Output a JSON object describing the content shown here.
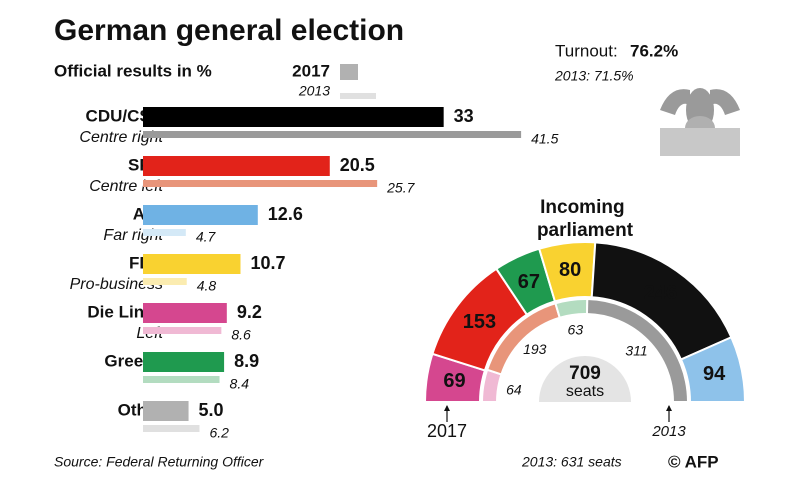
{
  "title": "German general election",
  "turnout_label": "Turnout:",
  "turnout_value": "76.2%",
  "turnout_previous": "2013: 71.5%",
  "source": "Source: Federal Returning Officer",
  "credit": "© AFP",
  "chart_data": [
    {
      "type": "hbar",
      "subtitle": "Official results in %",
      "categories": [
        "CDU/CSU",
        "SPD",
        "AfD",
        "FDP",
        "Die Linke",
        "Greens",
        "Other"
      ],
      "descriptions": [
        "Centre right",
        "Centre left",
        "Far right",
        "Pro-business",
        "Left",
        null,
        null
      ],
      "xlim": [
        0,
        45
      ],
      "series": [
        {
          "name": "2017",
          "color": "#b1b1b1",
          "values": [
            33,
            20.5,
            12.6,
            10.7,
            9.2,
            8.9,
            5.0
          ],
          "value_labels": [
            "33",
            "20.5",
            "12.6",
            "10.7",
            "9.2",
            "8.9",
            "5.0"
          ],
          "colors": [
            "#000000",
            "#e2231a",
            "#6fb2e4",
            "#f9d230",
            "#d5478f",
            "#1f9a4f",
            "#b1b1b1"
          ]
        },
        {
          "name": "2013",
          "color": "#e0e0e0",
          "values": [
            41.5,
            25.7,
            4.7,
            4.8,
            8.6,
            8.4,
            6.2
          ],
          "colors": [
            "#9a9a9a",
            "#e8957a",
            "#d4e9f7",
            "#fbecb0",
            "#f0b9d4",
            "#b3dcc0",
            "#e0e0e0"
          ]
        }
      ]
    },
    {
      "type": "parliament",
      "title": "Incoming parliament",
      "total": 709,
      "total_label": "seats",
      "footnote": "2013: 631 seats",
      "series": [
        {
          "name": "2017",
          "values": [
            69,
            153,
            67,
            80,
            246,
            94
          ],
          "colors": [
            "#d5478f",
            "#e2231a",
            "#1f9a4f",
            "#f9d230",
            "#111111",
            "#8ec2ea"
          ]
        },
        {
          "name": "2013",
          "values": [
            64,
            193,
            63,
            311
          ],
          "colors": [
            "#f0b9d4",
            "#e8957a",
            "#b3dcc0",
            "#9a9a9a"
          ]
        }
      ]
    }
  ]
}
